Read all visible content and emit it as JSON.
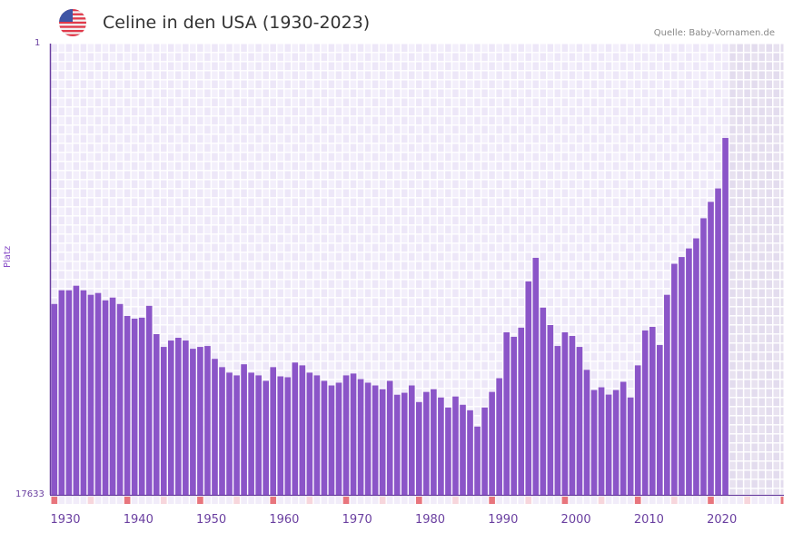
{
  "header": {
    "title": "Celine in den USA (1930-2023)",
    "source": "Quelle: Baby-Vornamen.de",
    "flag_icon": "us-flag-icon"
  },
  "chart_data": {
    "type": "bar",
    "title": "Celine in den USA (1930-2023)",
    "xlabel": "",
    "ylabel": "Platz",
    "y_axis_reversed": true,
    "ylim": [
      17633,
      1
    ],
    "ytick_labels": [
      "1",
      "17633"
    ],
    "xlim": [
      1930,
      2029
    ],
    "xtick_labels": [
      "1930",
      "1940",
      "1950",
      "1960",
      "1970",
      "1980",
      "1990",
      "2000",
      "2010",
      "2020"
    ],
    "xtick_values": [
      1930,
      1940,
      1950,
      1960,
      1970,
      1980,
      1990,
      2000,
      2010,
      2020
    ],
    "future_shaded_from": 2023,
    "colors": {
      "bar": "#8b55c8",
      "grid_bg": "#efe9f8",
      "future_bg": "#e3dced",
      "marker_strong": "#e8757d",
      "marker_light": "#f7d6dc",
      "axis": "#6a3fa0"
    },
    "years": [
      1930,
      1931,
      1932,
      1933,
      1934,
      1935,
      1936,
      1937,
      1938,
      1939,
      1940,
      1941,
      1942,
      1943,
      1944,
      1945,
      1946,
      1947,
      1948,
      1949,
      1950,
      1951,
      1952,
      1953,
      1954,
      1955,
      1956,
      1957,
      1958,
      1959,
      1960,
      1961,
      1962,
      1963,
      1964,
      1965,
      1966,
      1967,
      1968,
      1969,
      1970,
      1971,
      1972,
      1973,
      1974,
      1975,
      1976,
      1977,
      1978,
      1979,
      1980,
      1981,
      1982,
      1983,
      1984,
      1985,
      1986,
      1987,
      1988,
      1989,
      1990,
      1991,
      1992,
      1993,
      1994,
      1995,
      1996,
      1997,
      1998,
      1999,
      2000,
      2001,
      2002,
      2003,
      2004,
      2005,
      2006,
      2007,
      2008,
      2009,
      2010,
      2011,
      2012,
      2013,
      2014,
      2015,
      2016,
      2017,
      2018,
      2019,
      2020,
      2021,
      2022
    ],
    "values": [
      10176,
      9640,
      9640,
      9462,
      9640,
      9817,
      9746,
      10033,
      9924,
      10176,
      10641,
      10747,
      10712,
      10248,
      11352,
      11853,
      11603,
      11495,
      11603,
      11925,
      11853,
      11817,
      12319,
      12643,
      12858,
      12965,
      12531,
      12858,
      12965,
      13179,
      12643,
      13003,
      13038,
      12464,
      12573,
      12858,
      12965,
      13179,
      13358,
      13251,
      12965,
      12893,
      13110,
      13251,
      13358,
      13503,
      13179,
      13721,
      13645,
      13358,
      14007,
      13612,
      13503,
      13827,
      14219,
      13790,
      14113,
      14328,
      14966,
      14219,
      13612,
      13075,
      11282,
      11457,
      11100,
      9294,
      8372,
      10317,
      10998,
      11817,
      11282,
      11425,
      11853,
      12748,
      13537,
      13430,
      13716,
      13537,
      13216,
      13826,
      12573,
      11210,
      11070,
      11780,
      9817,
      8605,
      8341,
      8005,
      7611,
      6827,
      6185,
      5660,
      3690
    ],
    "marker_years_strong": [
      1930,
      1940,
      1950,
      1960,
      1970,
      1980,
      1990,
      2000,
      2010,
      2020,
      2030
    ],
    "marker_years_light": [
      1935,
      1945,
      1955,
      1965,
      1975,
      1985,
      1995,
      2005,
      2015,
      2025
    ]
  }
}
